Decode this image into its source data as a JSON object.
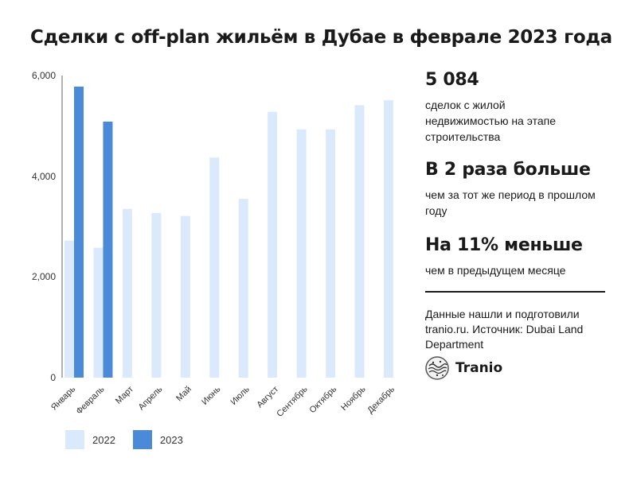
{
  "title": "Сделки с off-plan жильём в Дубае в феврале 2023 года",
  "chart_data": {
    "type": "bar",
    "categories": [
      "Январь",
      "Февраль",
      "Март",
      "Апрель",
      "Май",
      "Июнь",
      "Июль",
      "Август",
      "Сентябрь",
      "Октябрь",
      "Ноябрь",
      "Декабрь"
    ],
    "series": [
      {
        "name": "2022",
        "color": "#dbe9fc",
        "values": [
          2720,
          2580,
          3350,
          3270,
          3210,
          4370,
          3550,
          5280,
          4930,
          4930,
          5410,
          5510
        ]
      },
      {
        "name": "2023",
        "color": "#4a8ad8",
        "values": [
          5780,
          5084,
          null,
          null,
          null,
          null,
          null,
          null,
          null,
          null,
          null,
          null
        ]
      }
    ],
    "yticks": [
      "0",
      "2,000",
      "4,000",
      "6,000"
    ],
    "ylim": [
      0,
      6000
    ],
    "grid": false,
    "legend": "bottom-left"
  },
  "stats": [
    {
      "value": "5 084",
      "desc": "сделок с жилой недвижимостью на этапе строительства"
    },
    {
      "value": "В 2 раза больше",
      "desc": "чем за тот же период в прошлом году"
    },
    {
      "value": "На 11% меньше",
      "desc": "чем в предыдущем месяце"
    }
  ],
  "source": "Данные нашли и подготовили tranio.ru. Источник: Dubai Land Department",
  "brand": {
    "name": "Tranio",
    "icon": "tranio-logo-icon"
  }
}
